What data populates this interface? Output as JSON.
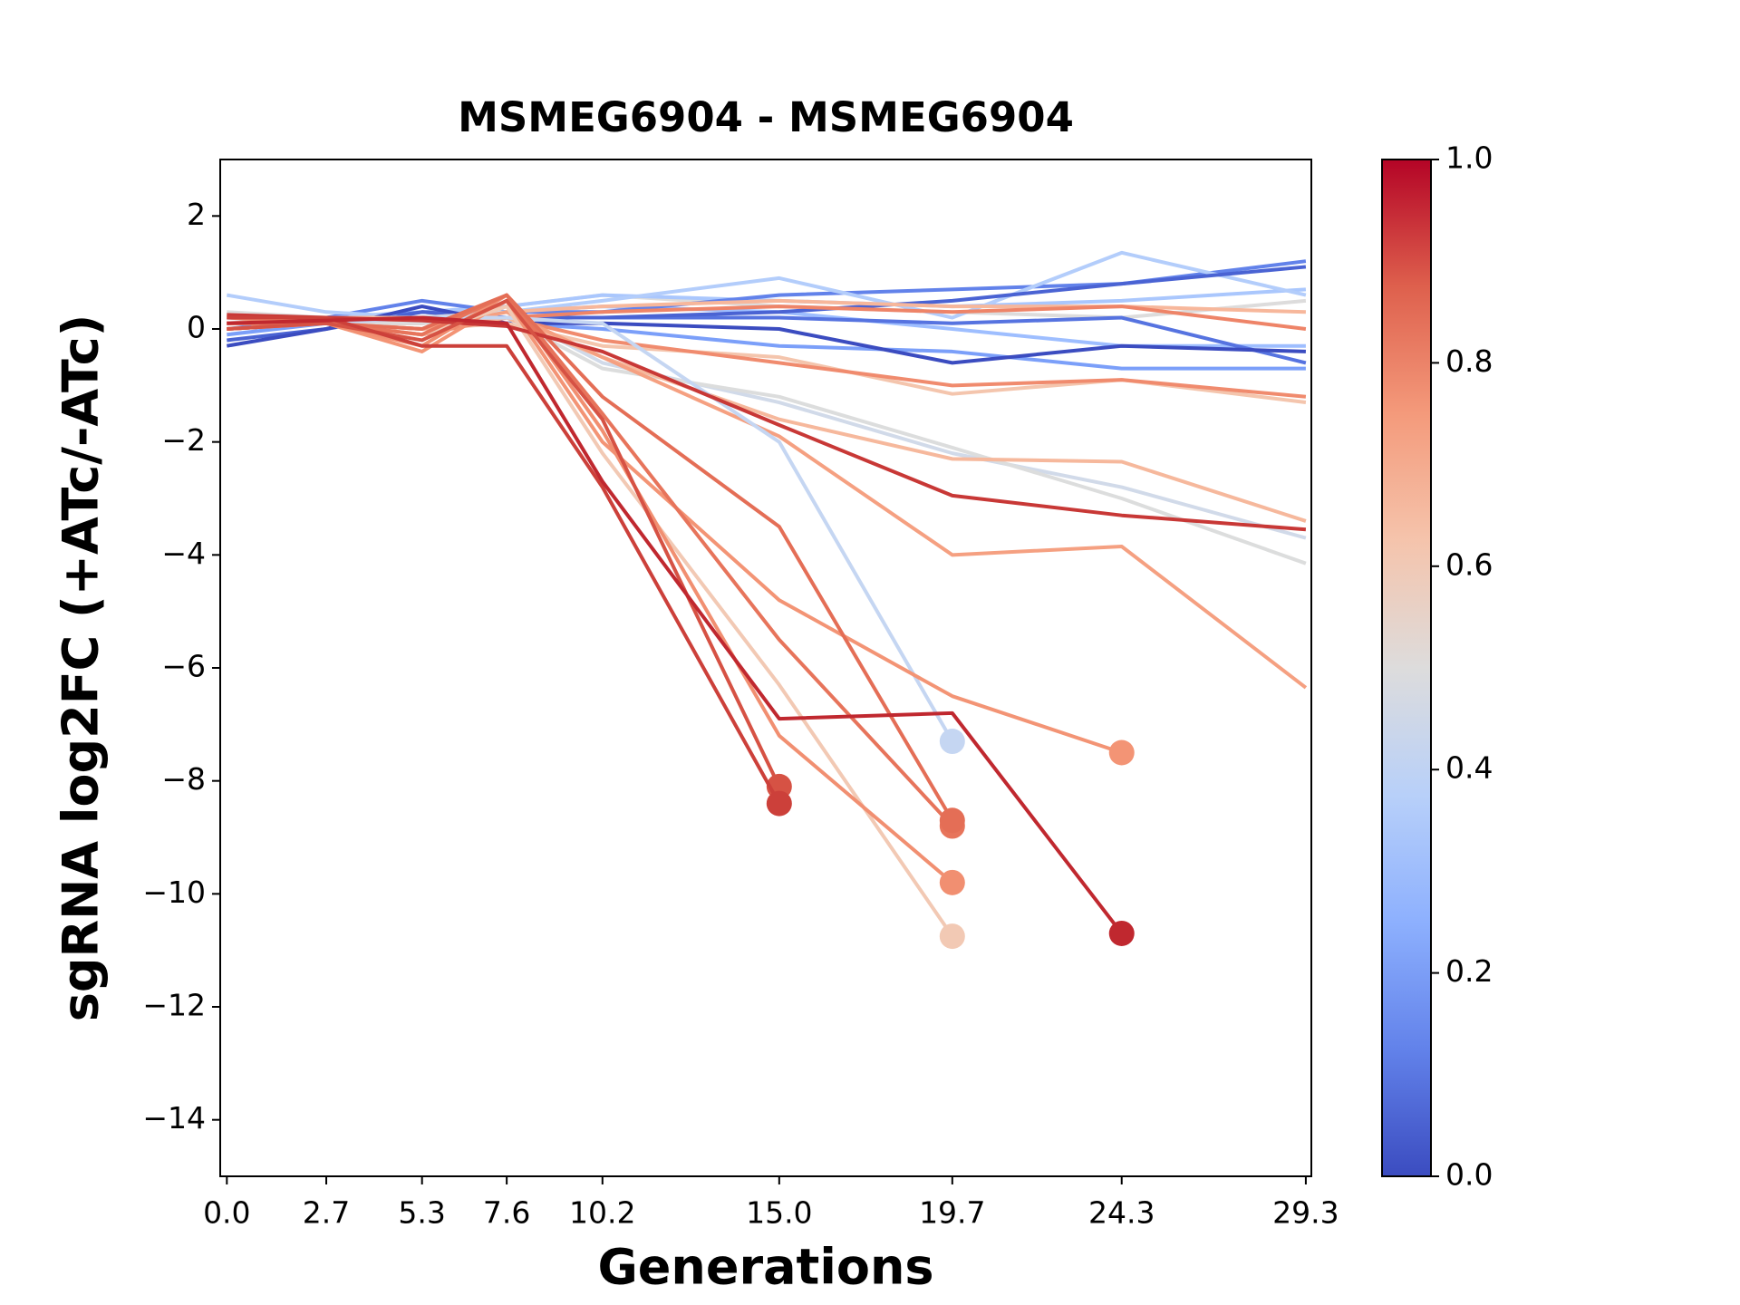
{
  "chart_data": {
    "type": "line",
    "title": "MSMEG6904 - MSMEG6904",
    "xlabel": "Generations",
    "ylabel": "sgRNA log2FC (+ATc/-ATc)",
    "x": [
      0.0,
      2.7,
      5.3,
      7.6,
      10.2,
      15.0,
      19.7,
      24.3,
      29.3
    ],
    "xlim": [
      -0.18,
      29.45
    ],
    "xticks": [
      {
        "value": 0,
        "label": "0.0"
      },
      2.7,
      5.3,
      7.6,
      10.2,
      {
        "value": 15,
        "label": "15.0"
      },
      19.7,
      24.3,
      29.3
    ],
    "ylim": [
      -15,
      3
    ],
    "yticks": [
      {
        "value": -14,
        "label": "−14"
      },
      {
        "value": -12,
        "label": "−12"
      },
      {
        "value": -10,
        "label": "−10"
      },
      {
        "value": -8,
        "label": "−8"
      },
      {
        "value": -6,
        "label": "−6"
      },
      {
        "value": -4,
        "label": "−4"
      },
      {
        "value": -2,
        "label": "−2"
      },
      0,
      2
    ],
    "series": [
      {
        "color": "#dddcdc",
        "values": [
          0.3,
          0.2,
          0.2,
          0.4,
          0.6,
          0.4,
          0.3,
          0.2,
          0.5
        ]
      },
      {
        "color": "#9ebeff",
        "values": [
          0.1,
          0.2,
          0.3,
          0.3,
          0.4,
          0.3,
          0.0,
          -0.3,
          -0.3
        ]
      },
      {
        "color": "#aac7fd",
        "values": [
          0.2,
          0.1,
          0.3,
          0.4,
          0.6,
          0.5,
          0.4,
          0.5,
          0.7
        ]
      },
      {
        "color": "#5673e0",
        "values": [
          0,
          0.1,
          0.3,
          0.2,
          0.2,
          0.2,
          0.1,
          0.2,
          -0.6
        ]
      },
      {
        "color": "#7b9ff9",
        "values": [
          -0.1,
          0.1,
          0.2,
          0.1,
          0,
          -0.3,
          -0.4,
          -0.7,
          -0.7
        ]
      },
      {
        "color": "#6282ea",
        "values": [
          0,
          0.2,
          0.5,
          0.3,
          0.3,
          0.6,
          0.7,
          0.8,
          1.2
        ]
      },
      {
        "color": "#b3cdfb",
        "values": [
          0.6,
          0.3,
          0.2,
          0.3,
          0.5,
          0.9,
          0.2,
          1.35,
          0.6
        ]
      },
      {
        "color": "#4a63d3",
        "values": [
          -0.2,
          0,
          0.3,
          0.2,
          0.2,
          0.3,
          0.5,
          0.8,
          1.1
        ]
      },
      {
        "color": "#3b4cc0",
        "values": [
          -0.3,
          0,
          0.4,
          0.1,
          0.1,
          0,
          -0.6,
          -0.3,
          -0.4
        ]
      },
      {
        "color": "#f7b79b",
        "values": [
          0.1,
          0.2,
          0.2,
          0.3,
          0.4,
          0.5,
          0.4,
          0.4,
          0.3
        ]
      },
      {
        "color": "#ee8468",
        "values": [
          0,
          0.1,
          0.1,
          0.2,
          0.3,
          0.4,
          0.3,
          0.4,
          0
        ]
      },
      {
        "color": "#f4c5ad",
        "values": [
          0.1,
          0.1,
          0,
          0.1,
          -0.3,
          -0.5,
          -1.15,
          -0.9,
          -1.3
        ]
      },
      {
        "color": "#f08b6e",
        "values": [
          0.2,
          0.1,
          -0.1,
          0.2,
          -0.2,
          -0.6,
          -1.0,
          -0.9,
          -1.2
        ]
      },
      {
        "color": "#d1dae9",
        "values": [
          0.1,
          0.1,
          0.2,
          0.3,
          -0.6,
          -1.3,
          -2.2,
          -2.8,
          -3.7
        ]
      },
      {
        "color": "#dcdddd",
        "values": [
          0,
          0.1,
          0.1,
          0.2,
          -0.7,
          -1.2,
          -2.1,
          -3.0,
          -4.15
        ]
      },
      {
        "color": "#f6b89c",
        "values": [
          0.1,
          0.1,
          0,
          0.2,
          -0.5,
          -1.6,
          -2.3,
          -2.35,
          -3.4
        ]
      },
      {
        "color": "#f5a081",
        "values": [
          0.1,
          0.1,
          0,
          0.3,
          -0.5,
          -1.9,
          -4.0,
          -3.85,
          -6.35
        ]
      },
      {
        "color": "#c5d6f2",
        "values": [
          0,
          0.1,
          0.2,
          0.2,
          0.1,
          -2.0,
          -7.3,
          null,
          null
        ]
      },
      {
        "color": "#f39475",
        "values": [
          0,
          0.1,
          -0.4,
          0.5,
          -2.0,
          -4.8,
          -6.5,
          -7.5,
          null
        ]
      },
      {
        "color": "#f2c9b4",
        "values": [
          0.1,
          0.1,
          -0.1,
          0.4,
          -2.2,
          -6.3,
          -10.75,
          null,
          null
        ]
      },
      {
        "color": "#f18f71",
        "values": [
          0,
          0.1,
          -0.3,
          0.6,
          -1.8,
          -7.2,
          -9.8,
          null,
          null
        ]
      },
      {
        "color": "#e7745b",
        "values": [
          0.1,
          0.1,
          -0.1,
          0.6,
          -1.5,
          -5.5,
          -8.8,
          null,
          null
        ]
      },
      {
        "color": "#e46e56",
        "values": [
          0,
          0.1,
          0,
          0.6,
          -1.2,
          -3.5,
          -8.7,
          null,
          null
        ]
      },
      {
        "color": "#c83836",
        "values": [
          0.25,
          0.2,
          0.15,
          0.05,
          -0.4,
          -1.7,
          -2.95,
          -3.3,
          -3.55
        ]
      },
      {
        "color": "#d65244",
        "values": [
          0,
          0.1,
          -0.2,
          0.5,
          -1.6,
          -8.1,
          null,
          null,
          null
        ]
      },
      {
        "color": "#cc403a",
        "values": [
          0.2,
          0.2,
          -0.3,
          -0.3,
          -2.8,
          -8.4,
          null,
          null,
          null
        ]
      },
      {
        "color": "#c0282f",
        "values": [
          0.1,
          0.15,
          0.2,
          0.1,
          -2.7,
          -6.9,
          -6.8,
          -10.7,
          null
        ]
      }
    ],
    "colorbar": {
      "lim": [
        0,
        1
      ],
      "ticks": [
        {
          "value": 0,
          "label": "0.0"
        },
        0.2,
        0.4,
        0.6,
        0.8,
        {
          "value": 1,
          "label": "1.0"
        }
      ],
      "colors": [
        "#3b4cc0",
        "#6282ea",
        "#8db0fe",
        "#b8d0f9",
        "#dddcdc",
        "#f5c4ac",
        "#f49a7b",
        "#de604d",
        "#b40426"
      ]
    }
  }
}
